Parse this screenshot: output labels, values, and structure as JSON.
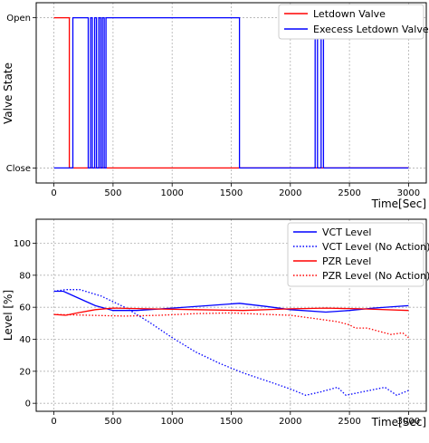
{
  "chart_data": [
    {
      "type": "line",
      "xlabel": "Time[Sec]",
      "ylabel": "Valve State",
      "xlim": [
        -150,
        3150
      ],
      "ylim": [
        -0.1,
        1.1
      ],
      "xticks": [
        0,
        500,
        1000,
        1500,
        2000,
        2500,
        3000
      ],
      "xtick_labels": [
        "0",
        "500",
        "1000",
        "1500",
        "2000",
        "2500",
        "3000"
      ],
      "yticks": [
        0,
        1
      ],
      "ytick_labels": [
        "Close",
        "Open"
      ],
      "grid": true,
      "legend_position": "top-right",
      "series": [
        {
          "name": "Letdown Valve",
          "color": "#ff0000",
          "step": true,
          "x": [
            0,
            130,
            130,
            3000
          ],
          "y": [
            1,
            1,
            0,
            0
          ]
        },
        {
          "name": "Execess Letdown Valve",
          "color": "#0000ff",
          "step": true,
          "x": [
            0,
            160,
            160,
            290,
            290,
            310,
            310,
            325,
            325,
            345,
            345,
            360,
            360,
            380,
            380,
            395,
            395,
            410,
            410,
            425,
            425,
            440,
            440,
            1570,
            1570,
            2210,
            2210,
            2230,
            2230,
            2260,
            2260,
            2280,
            2280,
            3000
          ],
          "y": [
            0,
            0,
            1,
            1,
            0,
            0,
            1,
            1,
            0,
            0,
            1,
            1,
            0,
            0,
            1,
            1,
            0,
            0,
            1,
            1,
            0,
            0,
            1,
            1,
            0,
            0,
            1,
            1,
            0,
            0,
            1,
            1,
            0,
            0
          ]
        }
      ]
    },
    {
      "type": "line",
      "xlabel": "Time[Sec]",
      "ylabel": "Level [%]",
      "xlim": [
        -150,
        3150
      ],
      "ylim": [
        -5,
        115
      ],
      "xticks": [
        0,
        500,
        1000,
        1500,
        2000,
        2500,
        3000
      ],
      "xtick_labels": [
        "0",
        "500",
        "1000",
        "1500",
        "2000",
        "2500",
        "3000"
      ],
      "yticks": [
        0,
        20,
        40,
        60,
        80,
        100
      ],
      "ytick_labels": [
        "0",
        "20",
        "40",
        "60",
        "80",
        "100"
      ],
      "grid": true,
      "legend_position": "top-right",
      "series": [
        {
          "name": "VCT Level",
          "color": "#0000ff",
          "dash": "solid",
          "x": [
            0,
            80,
            200,
            350,
            500,
            700,
            1000,
            1300,
            1570,
            1800,
            2000,
            2300,
            2500,
            2700,
            3000
          ],
          "y": [
            70,
            70,
            66,
            61,
            58,
            58,
            59.5,
            61,
            62.5,
            60.5,
            58.5,
            57,
            58,
            59.5,
            61
          ]
        },
        {
          "name": "VCT Level (No Action)",
          "color": "#0000ff",
          "dash": "dotted",
          "x": [
            0,
            100,
            220,
            400,
            600,
            800,
            1000,
            1200,
            1400,
            1600,
            1800,
            2000,
            2130,
            2250,
            2400,
            2470,
            2600,
            2800,
            2900,
            3000
          ],
          "y": [
            70,
            71,
            71,
            67,
            60,
            51,
            41,
            32,
            25,
            19,
            14,
            9,
            5,
            7,
            10,
            5,
            7,
            10,
            5,
            8
          ]
        },
        {
          "name": "PZR Level",
          "color": "#ff0000",
          "dash": "solid",
          "x": [
            0,
            100,
            200,
            350,
            500,
            800,
            1200,
            1600,
            2000,
            2300,
            2600,
            3000
          ],
          "y": [
            55.5,
            55,
            56.5,
            58.5,
            59.5,
            59,
            58.5,
            58,
            59,
            59.5,
            59,
            58
          ]
        },
        {
          "name": "PZR Level (No Action)",
          "color": "#ff0000",
          "dash": "dotted",
          "x": [
            0,
            300,
            600,
            900,
            1200,
            1500,
            1800,
            2000,
            2200,
            2400,
            2500,
            2550,
            2650,
            2750,
            2850,
            2950,
            3000
          ],
          "y": [
            55.5,
            55,
            54.5,
            55,
            56,
            56.5,
            55.5,
            55,
            53,
            51,
            49,
            47,
            47,
            45,
            43,
            44,
            41
          ]
        }
      ]
    }
  ]
}
